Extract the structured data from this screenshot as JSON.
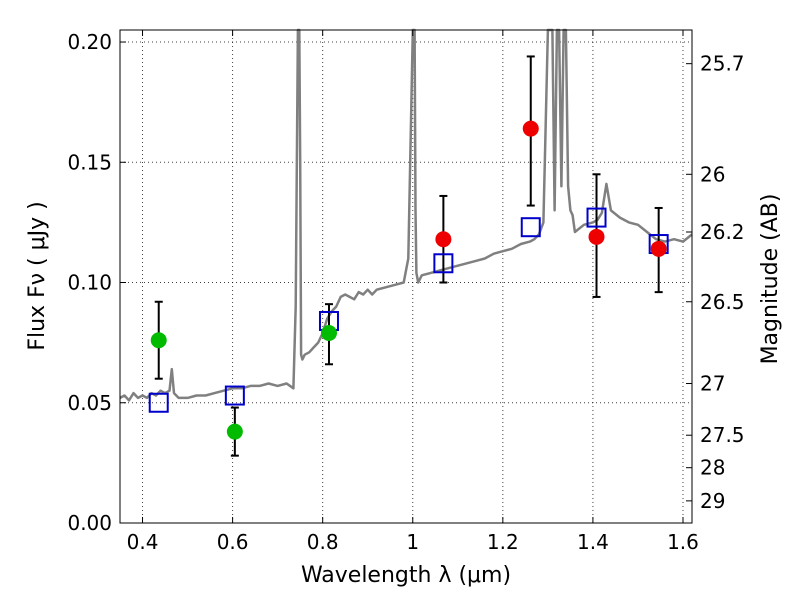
{
  "chart_data": {
    "type": "scatter",
    "xlabel": "Wavelength  λ (μm)",
    "ylabel": "Flux  Fν  ( μJy )",
    "ylabel_right": "Magnitude (AB)",
    "xlim": [
      0.35,
      1.62
    ],
    "ylim": [
      0.0,
      0.205
    ],
    "grid": true,
    "x_ticks": [
      0.4,
      0.6,
      0.8,
      1.0,
      1.2,
      1.4,
      1.6
    ],
    "x_tick_labels": [
      "0.4",
      "0.6",
      "0.8",
      "1",
      "1.2",
      "1.4",
      "1.6"
    ],
    "y_ticks": [
      0.0,
      0.05,
      0.1,
      0.15,
      0.2
    ],
    "y_tick_labels": [
      "0.00",
      "0.05",
      "0.10",
      "0.15",
      "0.20"
    ],
    "right_ticks": [
      {
        "label": "25.7",
        "flux": 0.191
      },
      {
        "label": "26",
        "flux": 0.145
      },
      {
        "label": "26.2",
        "flux": 0.121
      },
      {
        "label": "26.5",
        "flux": 0.092
      },
      {
        "label": "27",
        "flux": 0.058
      },
      {
        "label": "27.5",
        "flux": 0.0365
      },
      {
        "label": "28",
        "flux": 0.023
      },
      {
        "label": "29",
        "flux": 0.0092
      }
    ],
    "series": [
      {
        "name": "model spectrum",
        "kind": "line",
        "color": "#808080",
        "x": [
          0.35,
          0.36,
          0.37,
          0.38,
          0.39,
          0.4,
          0.41,
          0.42,
          0.43,
          0.44,
          0.45,
          0.46,
          0.465,
          0.47,
          0.475,
          0.48,
          0.5,
          0.52,
          0.54,
          0.56,
          0.58,
          0.6,
          0.62,
          0.64,
          0.66,
          0.68,
          0.7,
          0.72,
          0.735,
          0.74,
          0.745,
          0.748,
          0.75,
          0.752,
          0.755,
          0.76,
          0.77,
          0.78,
          0.79,
          0.8,
          0.81,
          0.82,
          0.83,
          0.84,
          0.85,
          0.86,
          0.87,
          0.88,
          0.89,
          0.9,
          0.91,
          0.92,
          0.94,
          0.96,
          0.98,
          0.99,
          1.0,
          1.004,
          1.006,
          1.008,
          1.012,
          1.02,
          1.04,
          1.06,
          1.08,
          1.1,
          1.12,
          1.14,
          1.16,
          1.18,
          1.2,
          1.22,
          1.24,
          1.26,
          1.27,
          1.28,
          1.29,
          1.3,
          1.31,
          1.315,
          1.32,
          1.325,
          1.33,
          1.335,
          1.34,
          1.345,
          1.35,
          1.355,
          1.36,
          1.38,
          1.4,
          1.41,
          1.42,
          1.43,
          1.44,
          1.46,
          1.48,
          1.5,
          1.52,
          1.54,
          1.56,
          1.58,
          1.6,
          1.62
        ],
        "values": [
          0.052,
          0.053,
          0.051,
          0.054,
          0.052,
          0.053,
          0.052,
          0.054,
          0.053,
          0.055,
          0.054,
          0.055,
          0.064,
          0.054,
          0.053,
          0.052,
          0.052,
          0.053,
          0.053,
          0.054,
          0.055,
          0.056,
          0.056,
          0.057,
          0.057,
          0.058,
          0.057,
          0.058,
          0.056,
          0.09,
          0.205,
          0.205,
          0.15,
          0.07,
          0.068,
          0.07,
          0.071,
          0.073,
          0.075,
          0.079,
          0.085,
          0.088,
          0.09,
          0.094,
          0.095,
          0.094,
          0.093,
          0.096,
          0.095,
          0.097,
          0.095,
          0.097,
          0.098,
          0.099,
          0.1,
          0.11,
          0.205,
          0.205,
          0.13,
          0.104,
          0.1,
          0.103,
          0.104,
          0.105,
          0.106,
          0.107,
          0.108,
          0.109,
          0.11,
          0.112,
          0.113,
          0.114,
          0.116,
          0.117,
          0.118,
          0.12,
          0.125,
          0.205,
          0.205,
          0.13,
          0.205,
          0.205,
          0.14,
          0.205,
          0.205,
          0.14,
          0.13,
          0.128,
          0.121,
          0.124,
          0.125,
          0.126,
          0.129,
          0.141,
          0.13,
          0.127,
          0.125,
          0.124,
          0.121,
          0.118,
          0.117,
          0.118,
          0.117,
          0.12
        ]
      },
      {
        "name": "model photometry",
        "kind": "squares",
        "color": "#0000cc",
        "x": [
          0.436,
          0.605,
          0.814,
          1.068,
          1.262,
          1.408,
          1.546
        ],
        "values": [
          0.05,
          0.053,
          0.084,
          0.108,
          0.123,
          0.127,
          0.116
        ]
      },
      {
        "name": "observed (green)",
        "kind": "points",
        "color": "#00bb00",
        "x": [
          0.436,
          0.605,
          0.814
        ],
        "values": [
          0.076,
          0.038,
          0.079
        ],
        "err_low": [
          0.06,
          0.028,
          0.066
        ],
        "err_high": [
          0.092,
          0.048,
          0.091
        ]
      },
      {
        "name": "observed (red)",
        "kind": "points",
        "color": "#ee0000",
        "x": [
          1.068,
          1.262,
          1.408,
          1.546
        ],
        "values": [
          0.118,
          0.164,
          0.119,
          0.114
        ],
        "err_low": [
          0.1,
          0.132,
          0.094,
          0.096
        ],
        "err_high": [
          0.136,
          0.194,
          0.145,
          0.131
        ]
      }
    ]
  }
}
